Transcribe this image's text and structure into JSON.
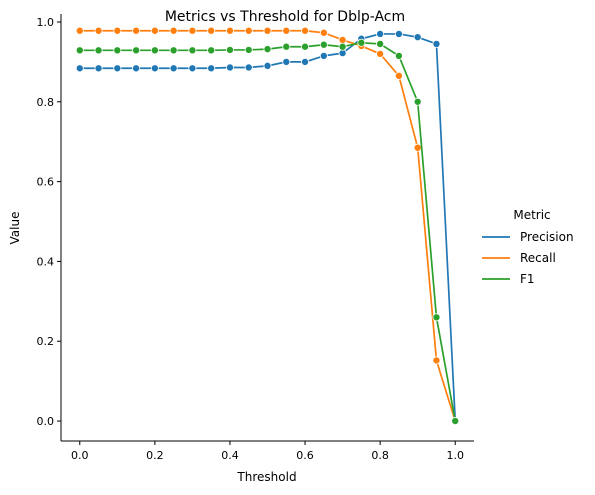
{
  "chart_data": {
    "type": "line",
    "title": "Metrics vs Threshold for Dblp-Acm",
    "xlabel": "Threshold",
    "ylabel": "Value",
    "xlim": [
      -0.05,
      1.05
    ],
    "ylim": [
      -0.05,
      1.02
    ],
    "xticks": [
      0.0,
      0.2,
      0.4,
      0.6,
      0.8,
      1.0
    ],
    "xtick_labels": [
      "0.0",
      "0.2",
      "0.4",
      "0.6",
      "0.8",
      "1.0"
    ],
    "yticks": [
      0.0,
      0.2,
      0.4,
      0.6,
      0.8,
      1.0
    ],
    "ytick_labels": [
      "0.0",
      "0.2",
      "0.4",
      "0.6",
      "0.8",
      "1.0"
    ],
    "grid": false,
    "legend_placement": "right",
    "legend_title": "Metric",
    "x": [
      0.0,
      0.05,
      0.1,
      0.15,
      0.2,
      0.25,
      0.3,
      0.35,
      0.4,
      0.45,
      0.5,
      0.55,
      0.6,
      0.65,
      0.7,
      0.75,
      0.8,
      0.85,
      0.9,
      0.95,
      1.0
    ],
    "series": [
      {
        "name": "Precision",
        "color": "#1f77b4",
        "values": [
          0.884,
          0.884,
          0.884,
          0.884,
          0.884,
          0.884,
          0.884,
          0.884,
          0.886,
          0.886,
          0.89,
          0.9,
          0.9,
          0.915,
          0.922,
          0.958,
          0.97,
          0.97,
          0.962,
          0.945,
          0.0
        ]
      },
      {
        "name": "Recall",
        "color": "#ff7f0e",
        "values": [
          0.978,
          0.978,
          0.978,
          0.978,
          0.978,
          0.978,
          0.978,
          0.978,
          0.978,
          0.978,
          0.978,
          0.978,
          0.978,
          0.973,
          0.955,
          0.94,
          0.92,
          0.865,
          0.685,
          0.152,
          0.0
        ]
      },
      {
        "name": "F1",
        "color": "#2ca02c",
        "values": [
          0.929,
          0.929,
          0.929,
          0.929,
          0.929,
          0.929,
          0.929,
          0.929,
          0.93,
          0.93,
          0.932,
          0.938,
          0.938,
          0.943,
          0.938,
          0.948,
          0.945,
          0.915,
          0.8,
          0.26,
          0.0
        ]
      }
    ]
  }
}
